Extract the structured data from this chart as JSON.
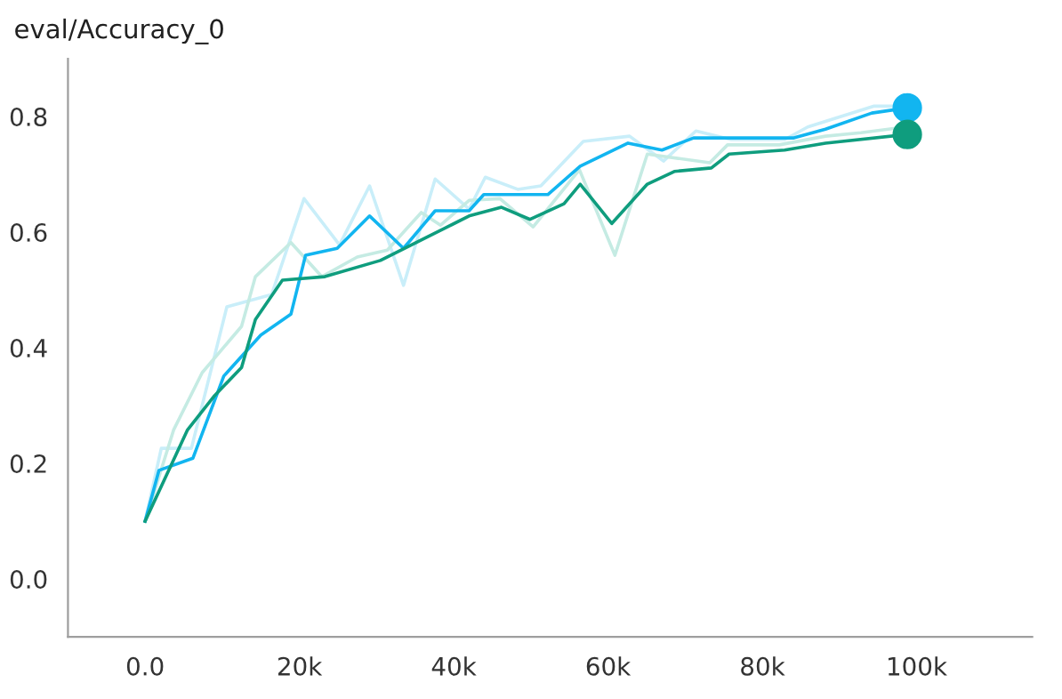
{
  "chart_data": {
    "type": "line",
    "title": "eval/Accuracy_0",
    "xlim": [
      -10000,
      115000
    ],
    "ylim": [
      -0.1,
      0.9
    ],
    "xticks": [
      {
        "value": 0,
        "label": "0.0"
      },
      {
        "value": 20000,
        "label": "20k"
      },
      {
        "value": 40000,
        "label": "40k"
      },
      {
        "value": 60000,
        "label": "60k"
      },
      {
        "value": 80000,
        "label": "80k"
      },
      {
        "value": 100000,
        "label": "100k"
      }
    ],
    "yticks": [
      {
        "value": 0,
        "label": "0.0"
      },
      {
        "value": 0.2,
        "label": "0.2"
      },
      {
        "value": 0.4,
        "label": "0.4"
      },
      {
        "value": 0.6,
        "label": "0.6"
      },
      {
        "value": 0.8,
        "label": "0.8"
      }
    ],
    "grid": false,
    "legend": false,
    "series": [
      {
        "color": "#c9eef9",
        "marker": "none",
        "x": [
          0,
          2100,
          6000,
          10600,
          16400,
          20600,
          25200,
          29100,
          33500,
          37600,
          42000,
          44100,
          48300,
          51300,
          56800,
          62800,
          67200,
          71400,
          76000,
          82900,
          85900,
          94500,
          97500
        ],
        "values": [
          0.1,
          0.226,
          0.226,
          0.471,
          0.492,
          0.658,
          0.578,
          0.68,
          0.508,
          0.692,
          0.64,
          0.695,
          0.674,
          0.68,
          0.757,
          0.766,
          0.723,
          0.775,
          0.76,
          0.76,
          0.782,
          0.818,
          0.818
        ]
      },
      {
        "color": "#c5ebe3",
        "marker": "none",
        "x": [
          0,
          3700,
          7400,
          12500,
          14300,
          18900,
          22900,
          27500,
          31400,
          35800,
          38300,
          42000,
          46000,
          50300,
          56300,
          60900,
          65100,
          73200,
          75500,
          82200,
          88200,
          92800,
          98600
        ],
        "values": [
          0.1,
          0.258,
          0.357,
          0.437,
          0.523,
          0.582,
          0.523,
          0.557,
          0.569,
          0.634,
          0.612,
          0.655,
          0.658,
          0.609,
          0.708,
          0.56,
          0.735,
          0.72,
          0.751,
          0.751,
          0.766,
          0.772,
          0.782
        ]
      },
      {
        "color": "#12b5f0",
        "marker": "none",
        "x": [
          0,
          1800,
          6200,
          10200,
          15000,
          18900,
          20800,
          24900,
          29100,
          33500,
          37600,
          42000,
          43900,
          52200,
          56400,
          62600,
          67000,
          71100,
          84100,
          88200,
          94200,
          98800
        ],
        "values": [
          0.1,
          0.188,
          0.209,
          0.351,
          0.422,
          0.458,
          0.56,
          0.572,
          0.628,
          0.572,
          0.637,
          0.637,
          0.665,
          0.665,
          0.714,
          0.754,
          0.742,
          0.763,
          0.763,
          0.778,
          0.806,
          0.815
        ]
      },
      {
        "color": "#0f9d7e",
        "marker": "none",
        "x": [
          0,
          5500,
          9000,
          12500,
          14300,
          17800,
          23300,
          30500,
          37400,
          42000,
          46200,
          49900,
          54300,
          56400,
          60500,
          65100,
          68600,
          73400,
          75700,
          82900,
          88200,
          98800
        ],
        "values": [
          0.1,
          0.258,
          0.317,
          0.366,
          0.449,
          0.517,
          0.523,
          0.551,
          0.597,
          0.628,
          0.643,
          0.622,
          0.649,
          0.683,
          0.615,
          0.683,
          0.705,
          0.711,
          0.735,
          0.742,
          0.754,
          0.769
        ]
      },
      {
        "type": "scatter",
        "color": "#12b5f0",
        "marker": "circle",
        "x": [
          98800
        ],
        "values": [
          0.815
        ]
      },
      {
        "type": "scatter",
        "color": "#0f9d7e",
        "marker": "circle",
        "x": [
          98800
        ],
        "values": [
          0.769
        ]
      }
    ]
  }
}
